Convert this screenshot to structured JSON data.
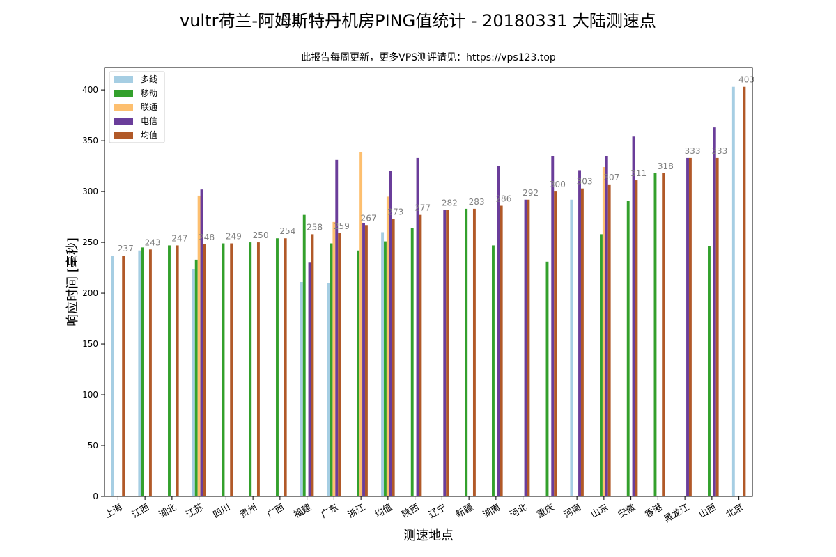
{
  "chart_data": {
    "type": "bar",
    "title": "vultr荷兰-阿姆斯特丹机房PING值统计 - 20180331 大陆测速点",
    "subtitle": "此报告每周更新，更多VPS测评请见：https://vps123.top",
    "xlabel": "测速地点",
    "ylabel": "响应时间 [毫秒]",
    "ylim": [
      0,
      422
    ],
    "yticks": [
      0,
      50,
      100,
      150,
      200,
      250,
      300,
      350,
      400
    ],
    "grid": false,
    "legend_position": "top-left",
    "categories": [
      "上海",
      "江西",
      "湖北",
      "江苏",
      "四川",
      "贵州",
      "广西",
      "福建",
      "广东",
      "浙江",
      "均值",
      "陕西",
      "辽宁",
      "新疆",
      "湖南",
      "河北",
      "重庆",
      "河南",
      "山东",
      "安徽",
      "香港",
      "黑龙江",
      "山西",
      "北京"
    ],
    "series": [
      {
        "name": "多线",
        "color": "#a6cee3",
        "values": [
          237,
          242,
          null,
          224,
          null,
          null,
          null,
          211,
          210,
          null,
          260,
          null,
          null,
          null,
          null,
          null,
          null,
          292,
          null,
          null,
          null,
          null,
          null,
          403
        ]
      },
      {
        "name": "移动",
        "color": "#33a02c",
        "values": [
          null,
          245,
          247,
          233,
          249,
          250,
          254,
          277,
          249,
          242,
          251,
          264,
          null,
          283,
          247,
          null,
          231,
          null,
          258,
          291,
          318,
          null,
          246,
          null
        ]
      },
      {
        "name": "联通",
        "color": "#fdbf6f",
        "values": [
          null,
          null,
          null,
          296,
          null,
          null,
          null,
          null,
          270,
          339,
          295,
          null,
          null,
          null,
          null,
          null,
          null,
          null,
          324,
          null,
          null,
          null,
          null,
          null
        ]
      },
      {
        "name": "电信",
        "color": "#6a3d9a",
        "values": [
          null,
          null,
          null,
          302,
          null,
          null,
          null,
          230,
          331,
          269,
          320,
          333,
          282,
          null,
          325,
          292,
          335,
          321,
          335,
          354,
          null,
          333,
          363,
          null
        ]
      },
      {
        "name": "均值",
        "color": "#b15928",
        "values": [
          237,
          243,
          247,
          248,
          249,
          250,
          254,
          258,
          259,
          267,
          273,
          277,
          282,
          283,
          286,
          292,
          300,
          303,
          307,
          311,
          318,
          333,
          333,
          403
        ]
      }
    ],
    "data_labels": [
      "237",
      "243",
      "247",
      "248",
      "249",
      "250",
      "254",
      "258",
      "259",
      "267",
      "273",
      "277",
      "282",
      "283",
      "286",
      "292",
      "300",
      "303",
      "307",
      "311",
      "318",
      "333",
      "333",
      "403"
    ]
  }
}
